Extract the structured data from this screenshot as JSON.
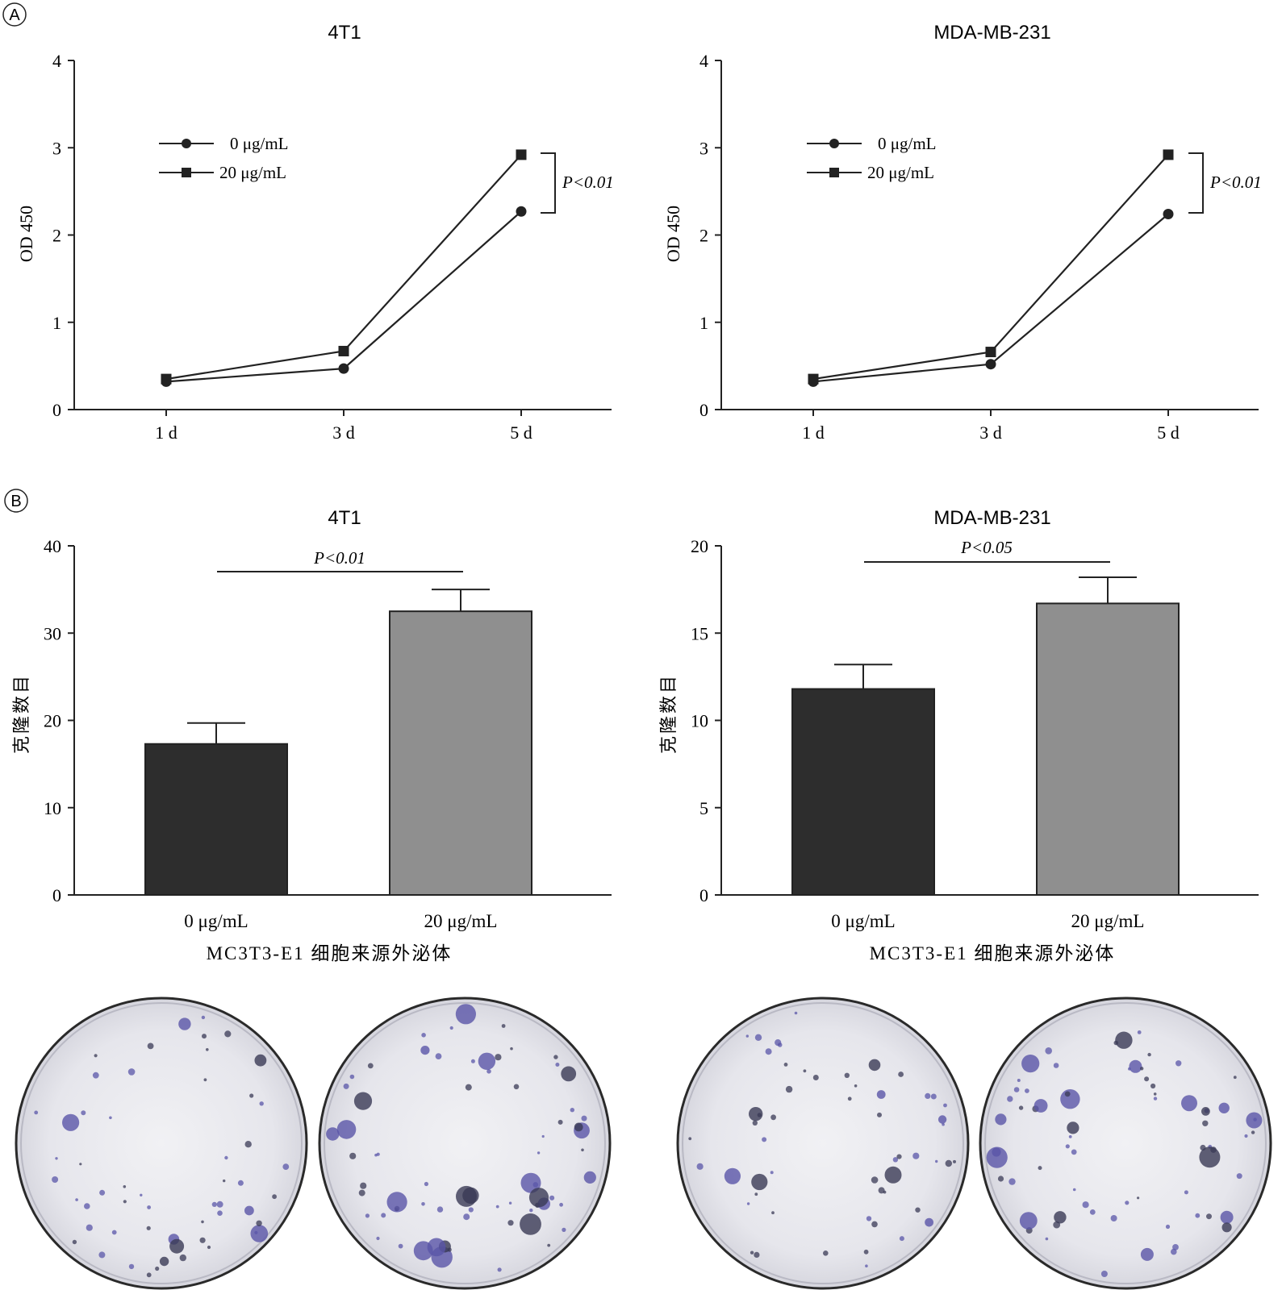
{
  "panel_labels": {
    "a": "A",
    "b": "B"
  },
  "chart_data": [
    {
      "type": "line",
      "title": "4T1",
      "ylabel": "OD 450",
      "x": [
        "1 d",
        "3 d",
        "5 d"
      ],
      "yticks": [
        "0",
        "1",
        "2",
        "3",
        "4"
      ],
      "ylim": [
        0,
        4
      ],
      "series": [
        {
          "name": "0 μg/mL",
          "marker": "circle",
          "values": [
            0.32,
            0.47,
            2.27
          ]
        },
        {
          "name": "20 μg/mL",
          "marker": "square",
          "values": [
            0.35,
            0.67,
            2.92
          ]
        }
      ],
      "annotation": "P<0.01"
    },
    {
      "type": "line",
      "title": "MDA-MB-231",
      "ylabel": "OD 450",
      "x": [
        "1 d",
        "3 d",
        "5 d"
      ],
      "yticks": [
        "0",
        "1",
        "2",
        "3",
        "4"
      ],
      "ylim": [
        0,
        4
      ],
      "series": [
        {
          "name": "0 μg/mL",
          "marker": "circle",
          "values": [
            0.32,
            0.52,
            2.24
          ]
        },
        {
          "name": "20 μg/mL",
          "marker": "square",
          "values": [
            0.35,
            0.66,
            2.92
          ]
        }
      ],
      "annotation": "P<0.01"
    },
    {
      "type": "bar",
      "title": "4T1",
      "ylabel": "克隆数目",
      "xlabel": "MC3T3-E1 细胞来源外泌体",
      "categories": [
        "0 μg/mL",
        "20 μg/mL"
      ],
      "values": [
        17.3,
        32.5
      ],
      "errors": [
        2.4,
        2.5
      ],
      "colors": [
        "#2d2d2d",
        "#8f8f8f"
      ],
      "yticks": [
        "0",
        "10",
        "20",
        "30",
        "40"
      ],
      "ylim": [
        0,
        40
      ],
      "annotation": "P<0.01"
    },
    {
      "type": "bar",
      "title": "MDA-MB-231",
      "ylabel": "克隆数目",
      "xlabel": "MC3T3-E1 细胞来源外泌体",
      "categories": [
        "0 μg/mL",
        "20 μg/mL"
      ],
      "values": [
        11.8,
        16.7
      ],
      "errors": [
        1.4,
        1.5
      ],
      "colors": [
        "#2d2d2d",
        "#8f8f8f"
      ],
      "yticks": [
        "0",
        "5",
        "10",
        "15",
        "20"
      ],
      "ylim": [
        0,
        20
      ],
      "annotation": "P<0.05"
    }
  ],
  "colony_dishes": [
    {
      "cell_line": "4T1",
      "dose": "0 μg/mL",
      "colony_count_level": "low"
    },
    {
      "cell_line": "4T1",
      "dose": "20 μg/mL",
      "colony_count_level": "high"
    },
    {
      "cell_line": "MDA-MB-231",
      "dose": "0 μg/mL",
      "colony_count_level": "low"
    },
    {
      "cell_line": "MDA-MB-231",
      "dose": "20 μg/mL",
      "colony_count_level": "high"
    }
  ],
  "colors": {
    "axis": "#222222",
    "colony": "#5a55a8",
    "colony_dark": "#3a3a55",
    "dish_bg": "#e9e9ee"
  }
}
